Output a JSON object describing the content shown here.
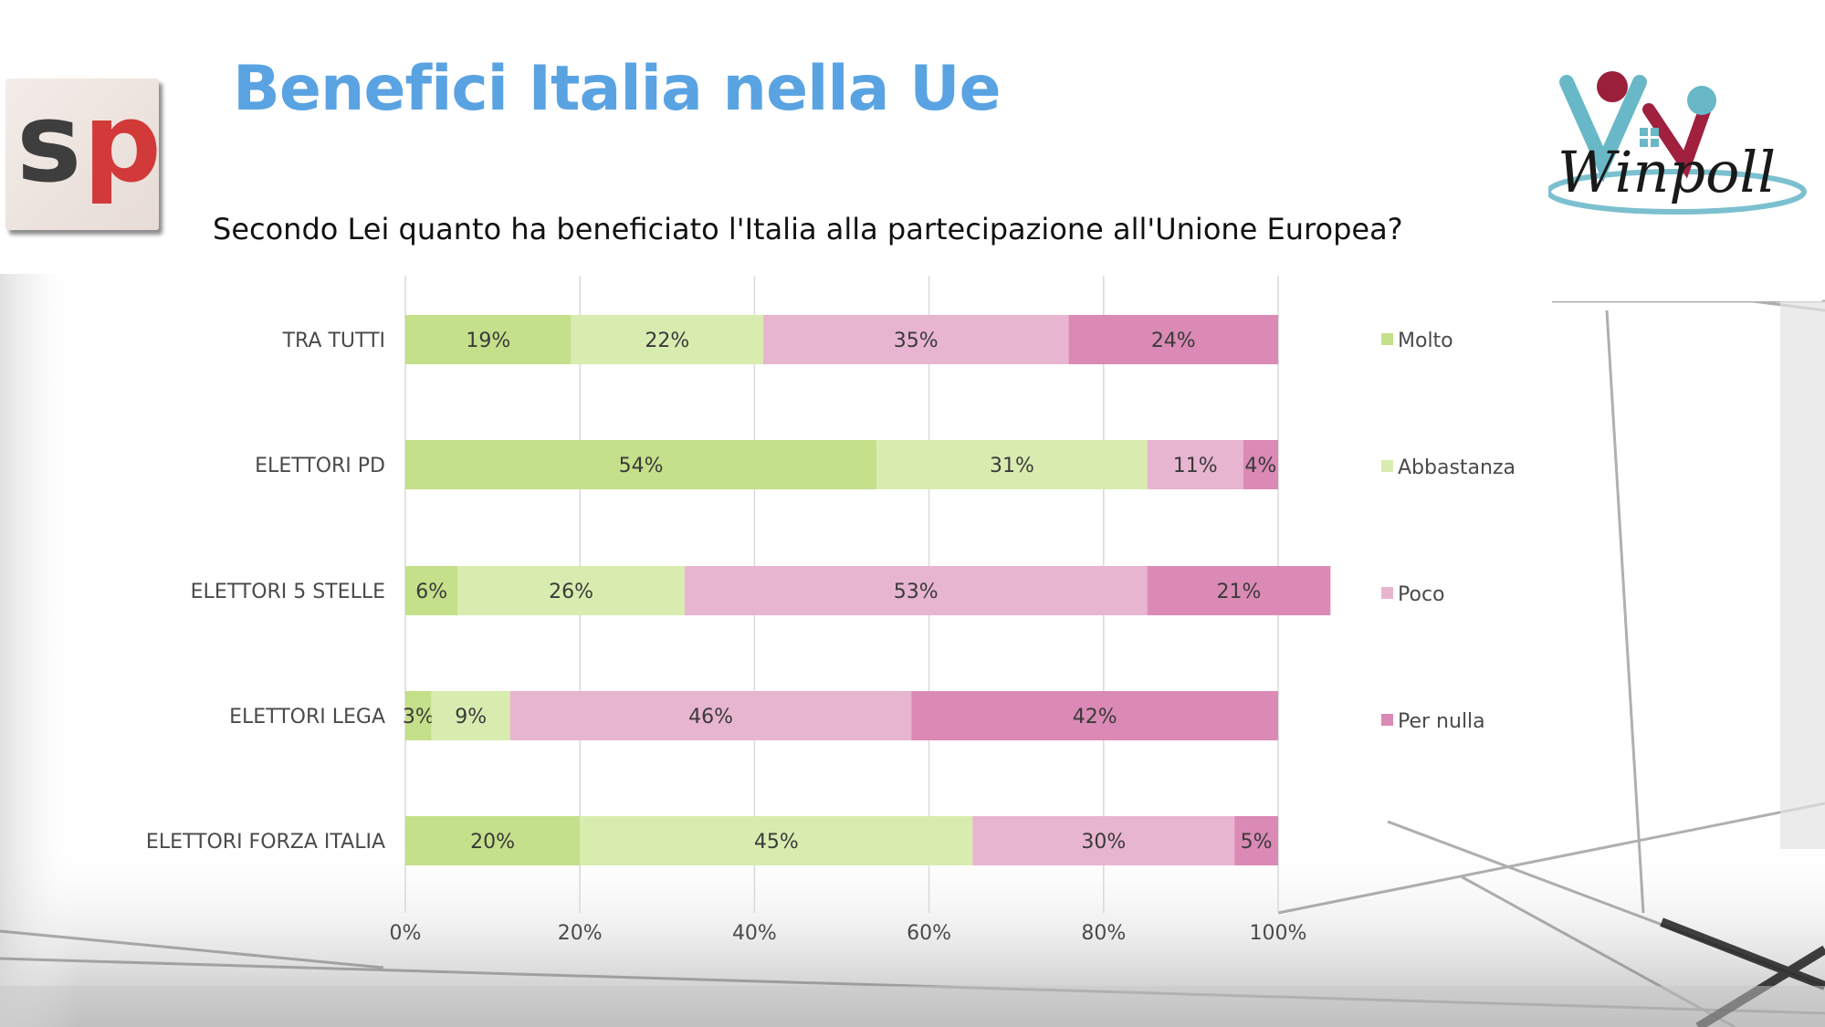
{
  "slide": {
    "title": "Benefici Italia nella Ue",
    "question": "Secondo Lei quanto ha beneficiato l'Italia alla partecipazione all'Unione Europea?"
  },
  "logos": {
    "left_text_s": "s",
    "left_text_p": "p",
    "right_text": "Winpoll"
  },
  "chart_data": {
    "type": "bar",
    "orientation": "horizontal",
    "stacked": "percent",
    "categories": [
      "TRA TUTTI",
      "ELETTORI PD",
      "ELETTORI 5 STELLE",
      "ELETTORI LEGA",
      "ELETTORI FORZA ITALIA"
    ],
    "series": [
      {
        "name": "Molto",
        "color": "#c5e08a",
        "values": [
          19,
          54,
          6,
          3,
          20
        ]
      },
      {
        "name": "Abbastanza",
        "color": "#d9ecb0",
        "values": [
          22,
          31,
          26,
          9,
          45
        ]
      },
      {
        "name": "Poco",
        "color": "#e8b5d1",
        "values": [
          35,
          11,
          53,
          46,
          30
        ]
      },
      {
        "name": "Per nulla",
        "color": "#db8ab5",
        "values": [
          24,
          4,
          21,
          42,
          5
        ]
      }
    ],
    "value_suffix": "%",
    "xlim": [
      0,
      100
    ],
    "xticks": [
      "0%",
      "20%",
      "40%",
      "60%",
      "80%",
      "100%"
    ],
    "grid": true,
    "legend": "right"
  }
}
